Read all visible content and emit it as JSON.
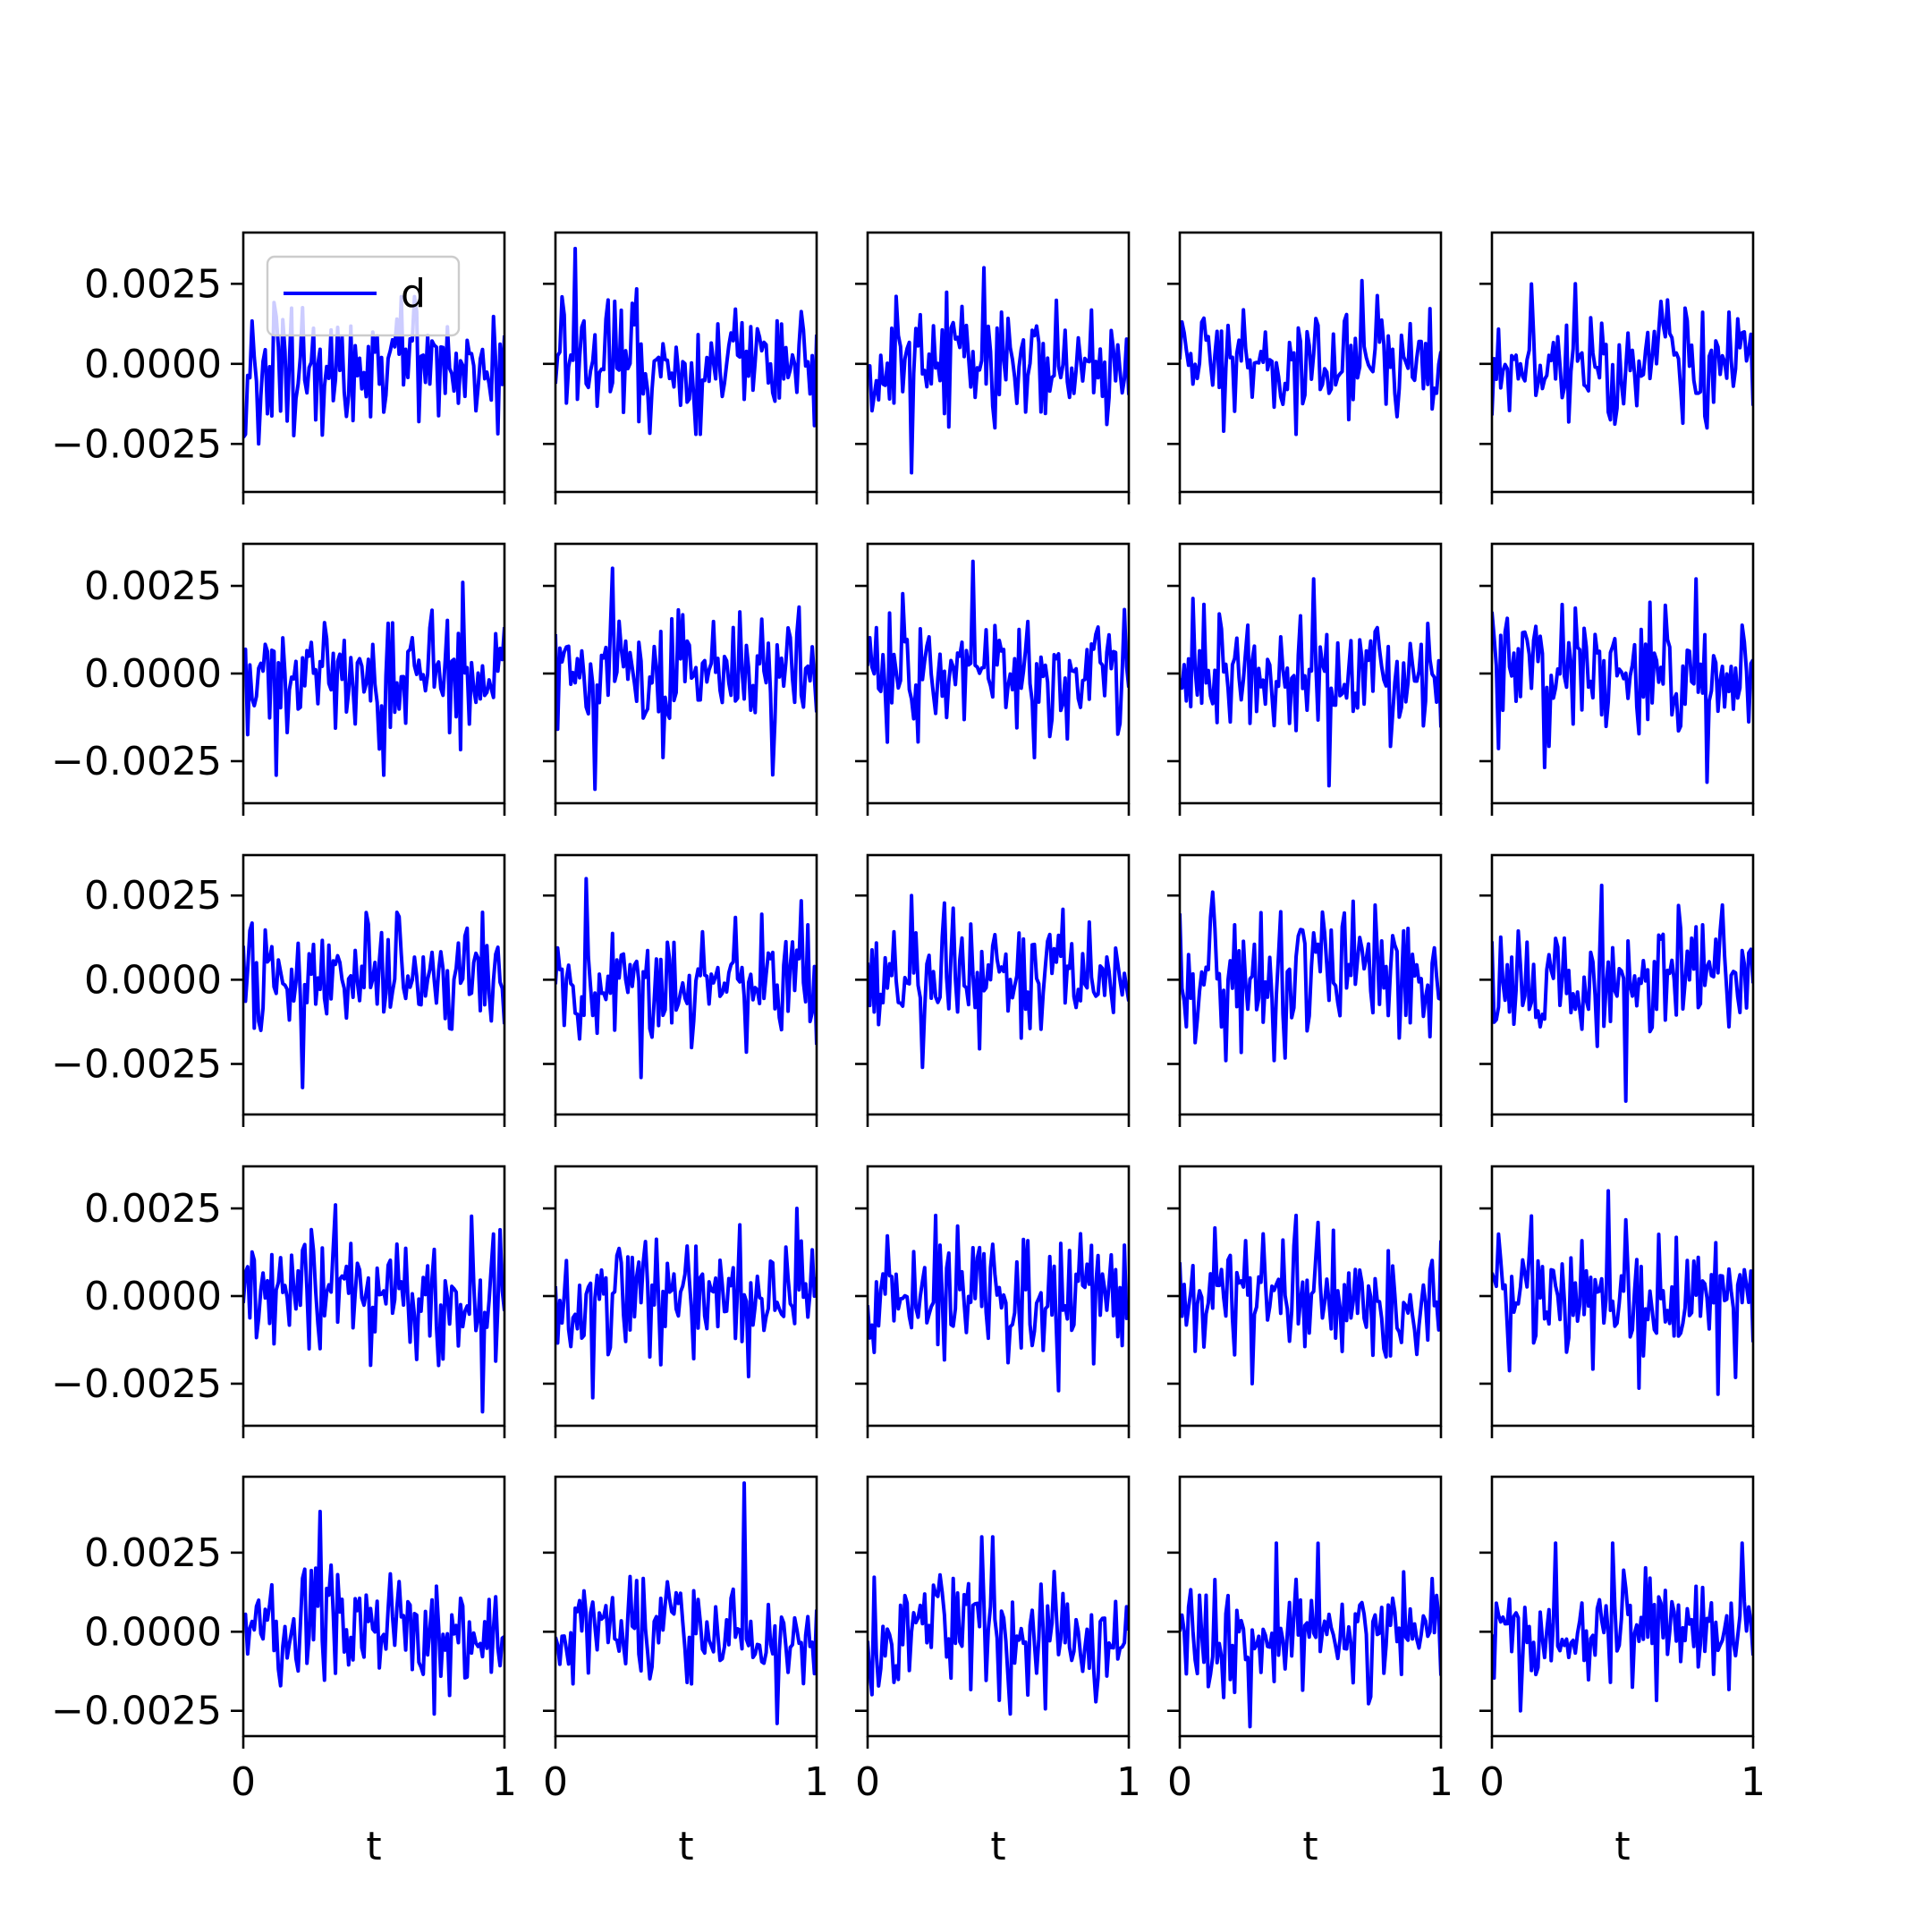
{
  "chart_data": {
    "type": "line",
    "grid": false,
    "rows": 5,
    "cols": 5,
    "legend": {
      "placement": "top-left",
      "panel": 0,
      "label": "d"
    },
    "series_color": "#0000ff",
    "x_tick_labels": [
      "0",
      "1"
    ],
    "xlabel": "t",
    "xlim": [
      0,
      1
    ],
    "ylim_rows": [
      [
        -0.004,
        0.0041
      ],
      [
        -0.0037,
        0.0037
      ],
      [
        -0.004,
        0.0037
      ],
      [
        -0.0037,
        0.0037
      ],
      [
        -0.0033,
        0.0049
      ]
    ],
    "y_tick_values": [
      -0.0025,
      0.0,
      0.0025
    ],
    "y_tick_labels": [
      "−0.0025",
      "0.0000",
      "0.0025"
    ],
    "n_points": 120,
    "panels": [
      {
        "row": 0,
        "col": 0,
        "seed": 11,
        "amp": 0.0009,
        "min": -0.0025,
        "max": 0.0021
      },
      {
        "row": 0,
        "col": 1,
        "seed": 12,
        "amp": 0.0009,
        "min": -0.0022,
        "max": 0.0036
      },
      {
        "row": 0,
        "col": 2,
        "seed": 13,
        "amp": 0.0009,
        "min": -0.0034,
        "max": 0.003
      },
      {
        "row": 0,
        "col": 3,
        "seed": 14,
        "amp": 0.0009,
        "min": -0.0022,
        "max": 0.0026
      },
      {
        "row": 0,
        "col": 4,
        "seed": 15,
        "amp": 0.0009,
        "min": -0.002,
        "max": 0.0025
      },
      {
        "row": 1,
        "col": 0,
        "seed": 21,
        "amp": 0.0009,
        "min": -0.0029,
        "max": 0.0026
      },
      {
        "row": 1,
        "col": 1,
        "seed": 22,
        "amp": 0.0009,
        "min": -0.0033,
        "max": 0.003
      },
      {
        "row": 1,
        "col": 2,
        "seed": 23,
        "amp": 0.0009,
        "min": -0.0024,
        "max": 0.0032
      },
      {
        "row": 1,
        "col": 3,
        "seed": 24,
        "amp": 0.0009,
        "min": -0.0032,
        "max": 0.0027
      },
      {
        "row": 1,
        "col": 4,
        "seed": 25,
        "amp": 0.0009,
        "min": -0.0031,
        "max": 0.0027
      },
      {
        "row": 2,
        "col": 0,
        "seed": 31,
        "amp": 0.0009,
        "min": -0.0032,
        "max": 0.002
      },
      {
        "row": 2,
        "col": 1,
        "seed": 32,
        "amp": 0.0009,
        "min": -0.0029,
        "max": 0.003
      },
      {
        "row": 2,
        "col": 2,
        "seed": 33,
        "amp": 0.0009,
        "min": -0.0026,
        "max": 0.0025
      },
      {
        "row": 2,
        "col": 3,
        "seed": 34,
        "amp": 0.0009,
        "min": -0.0024,
        "max": 0.0026
      },
      {
        "row": 2,
        "col": 4,
        "seed": 35,
        "amp": 0.0009,
        "min": -0.0036,
        "max": 0.0028
      },
      {
        "row": 3,
        "col": 0,
        "seed": 41,
        "amp": 0.0009,
        "min": -0.0033,
        "max": 0.0026
      },
      {
        "row": 3,
        "col": 1,
        "seed": 42,
        "amp": 0.0009,
        "min": -0.0029,
        "max": 0.0025
      },
      {
        "row": 3,
        "col": 2,
        "seed": 43,
        "amp": 0.0009,
        "min": -0.0027,
        "max": 0.0023
      },
      {
        "row": 3,
        "col": 3,
        "seed": 44,
        "amp": 0.0009,
        "min": -0.0025,
        "max": 0.0023
      },
      {
        "row": 3,
        "col": 4,
        "seed": 45,
        "amp": 0.0009,
        "min": -0.0028,
        "max": 0.003
      },
      {
        "row": 4,
        "col": 0,
        "seed": 51,
        "amp": 0.0009,
        "min": -0.0026,
        "max": 0.0038
      },
      {
        "row": 4,
        "col": 1,
        "seed": 52,
        "amp": 0.0009,
        "min": -0.0029,
        "max": 0.0047
      },
      {
        "row": 4,
        "col": 2,
        "seed": 53,
        "amp": 0.0009,
        "min": -0.0026,
        "max": 0.003
      },
      {
        "row": 4,
        "col": 3,
        "seed": 54,
        "amp": 0.0009,
        "min": -0.003,
        "max": 0.0028
      },
      {
        "row": 4,
        "col": 4,
        "seed": 55,
        "amp": 0.0009,
        "min": -0.0025,
        "max": 0.0028
      }
    ]
  }
}
